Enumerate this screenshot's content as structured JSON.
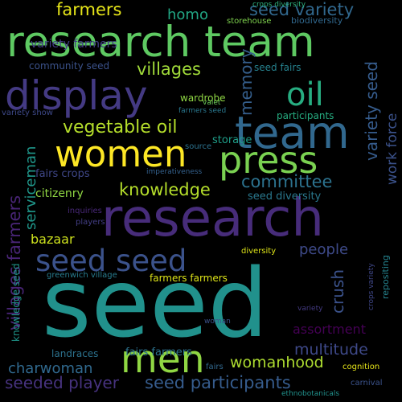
{
  "words": [
    {
      "text": "seed",
      "color": "#21918c"
    },
    {
      "text": "research",
      "color": "#472c7a"
    },
    {
      "text": "research team",
      "color": "#5ec962"
    },
    {
      "text": "display",
      "color": "#443a83"
    },
    {
      "text": "women",
      "color": "#fde725"
    },
    {
      "text": "press",
      "color": "#7ad151"
    },
    {
      "text": "team",
      "color": "#31688e"
    },
    {
      "text": "men",
      "color": "#90d743"
    },
    {
      "text": "seed seed",
      "color": "#3b528b"
    },
    {
      "text": "oil",
      "color": "#27ad81"
    },
    {
      "text": "vegetable oil",
      "color": "#b5de2b"
    },
    {
      "text": "seeded player",
      "color": "#46327e"
    },
    {
      "text": "seed participants",
      "color": "#365c8d"
    },
    {
      "text": "villages farmers",
      "color": "#482475"
    },
    {
      "text": "seed variety",
      "color": "#31688e"
    },
    {
      "text": "farmers",
      "color": "#e5e419"
    },
    {
      "text": "knowledge",
      "color": "#b5de2b"
    },
    {
      "text": "committee",
      "color": "#2c728e"
    },
    {
      "text": "villages",
      "color": "#a0da39"
    },
    {
      "text": "variety seed",
      "color": "#365c8d"
    },
    {
      "text": "work force",
      "color": "#3b528b"
    },
    {
      "text": "memory",
      "color": "#355f8d"
    },
    {
      "text": "assortment",
      "color": "#440154"
    },
    {
      "text": "multitude",
      "color": "#3e4989"
    },
    {
      "text": "womanhood",
      "color": "#addc30"
    },
    {
      "text": "charwoman",
      "color": "#30698e"
    },
    {
      "text": "crush",
      "color": "#3b528b"
    },
    {
      "text": "people",
      "color": "#3e4a89"
    },
    {
      "text": "bazaar",
      "color": "#cde11d"
    },
    {
      "text": "serviceman",
      "color": "#1f978b"
    },
    {
      "text": "homo",
      "color": "#22a785"
    },
    {
      "text": "fairs crops",
      "color": "#3f4788"
    },
    {
      "text": "citizenry",
      "color": "#90d743"
    },
    {
      "text": "seed diversity",
      "color": "#2a788e"
    },
    {
      "text": "storage",
      "color": "#1f9e89"
    },
    {
      "text": "variety farmers",
      "color": "#433e85"
    },
    {
      "text": "wardrobe",
      "color": "#8fd744"
    },
    {
      "text": "community seed",
      "color": "#3b528b"
    },
    {
      "text": "seed fairs",
      "color": "#26828e"
    },
    {
      "text": "participants",
      "color": "#26ad81"
    },
    {
      "text": "fairs farmers",
      "color": "#2c728e"
    },
    {
      "text": "landraces",
      "color": "#2c728e"
    },
    {
      "text": "farmers farmers",
      "color": "#dde318"
    },
    {
      "text": "knowledge seed",
      "color": "#1f968b"
    },
    {
      "text": "repositing",
      "color": "#25838e"
    },
    {
      "text": "cognition",
      "color": "#e5e419"
    },
    {
      "text": "diversity",
      "color": "#dde318"
    },
    {
      "text": "storehouse",
      "color": "#7fd34e"
    },
    {
      "text": "biodiversity",
      "color": "#31688e"
    },
    {
      "text": "crops diversity",
      "color": "#2db27d"
    },
    {
      "text": "variety show",
      "color": "#3e4989"
    },
    {
      "text": "valet",
      "color": "#6ccd5a"
    },
    {
      "text": "farmers seed",
      "color": "#2a778e"
    },
    {
      "text": "source",
      "color": "#2c728e"
    },
    {
      "text": "imperativeness",
      "color": "#34618d"
    },
    {
      "text": "inquiries",
      "color": "#482878"
    },
    {
      "text": "players",
      "color": "#433e85"
    },
    {
      "text": "greenwich village",
      "color": "#287c8e"
    },
    {
      "text": "crops variety",
      "color": "#3f4788"
    },
    {
      "text": "carnival",
      "color": "#3b528b"
    },
    {
      "text": "ethnobotanicals",
      "color": "#21918c"
    },
    {
      "text": "woman",
      "color": "#3b528b"
    },
    {
      "text": "fairs",
      "color": "#31688e"
    },
    {
      "text": "variety",
      "color": "#443a83"
    }
  ]
}
